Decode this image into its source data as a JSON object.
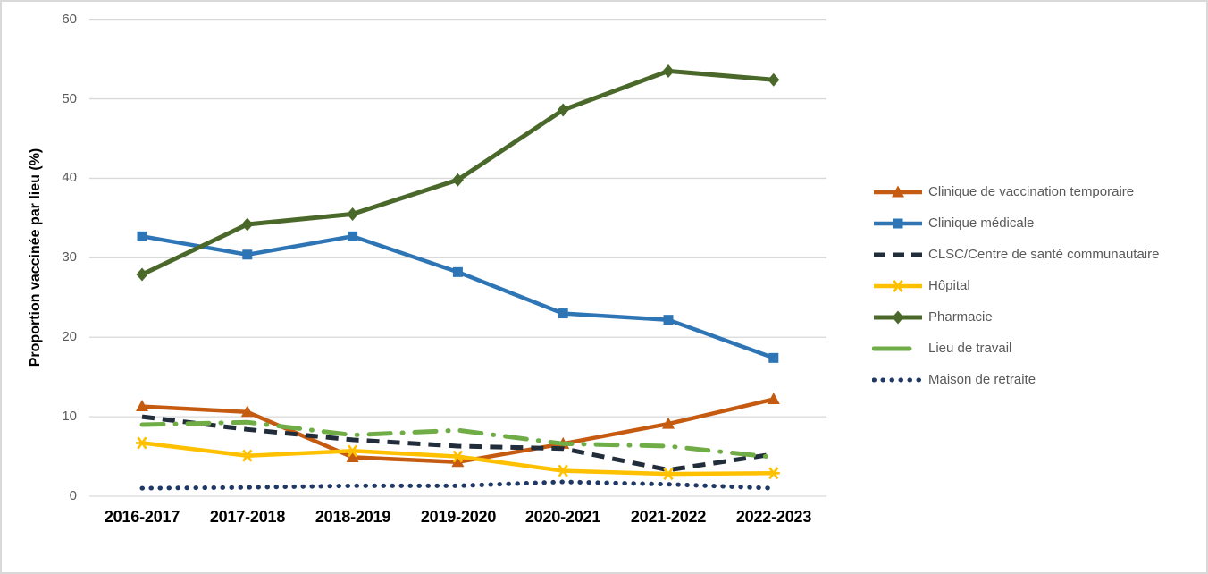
{
  "chart_data": {
    "type": "line",
    "title": "",
    "ylabel": "Proportion vaccinée par lieu (%)",
    "xlabel": "",
    "ylim": [
      0,
      60
    ],
    "yticks": [
      0,
      10,
      20,
      30,
      40,
      50,
      60
    ],
    "grid": "horizontal",
    "gridline_color": "#d9d9d9",
    "legend_position": "right",
    "categories": [
      "2016-2017",
      "2017-2018",
      "2018-2019",
      "2019-2020",
      "2020-2021",
      "2021-2022",
      "2022-2023"
    ],
    "series": [
      {
        "id": "clinique-vaccination-temporaire",
        "name": "Clinique de vaccination temporaire",
        "color": "#C55A11",
        "style": "solid",
        "width": 4.5,
        "marker": "triangle",
        "values": [
          11.3,
          10.6,
          4.9,
          4.3,
          6.6,
          9.1,
          12.2
        ]
      },
      {
        "id": "clinique-medicale",
        "name": "Clinique médicale",
        "color": "#2E75B6",
        "style": "solid",
        "width": 4.5,
        "marker": "square",
        "values": [
          32.7,
          30.4,
          32.7,
          28.2,
          23.0,
          22.2,
          17.4
        ]
      },
      {
        "id": "clsc-centre-sante-communautaire",
        "name": "CLSC/Centre de santé communautaire",
        "color": "#212D3B",
        "style": "dashed",
        "dash": "14 9",
        "legend_dash": "13 8",
        "width": 5,
        "marker": null,
        "values": [
          10.0,
          8.4,
          7.1,
          6.3,
          6.0,
          3.3,
          5.3
        ]
      },
      {
        "id": "hopital",
        "name": "Hôpital",
        "color": "#FFC000",
        "style": "solid",
        "width": 4.5,
        "marker": "star",
        "values": [
          6.7,
          5.1,
          5.7,
          5.0,
          3.2,
          2.8,
          2.9
        ]
      },
      {
        "id": "pharmacie",
        "name": "Pharmacie",
        "color": "#4A682A",
        "style": "solid",
        "width": 5,
        "marker": "diamond",
        "values": [
          27.9,
          34.2,
          35.5,
          39.8,
          48.6,
          53.5,
          52.4
        ]
      },
      {
        "id": "lieu-de-travail",
        "name": "Lieu de travail",
        "color": "#70AD47",
        "style": "dash-dot",
        "dash": "24 13 1 13",
        "legend_dash": "40 18",
        "linecap": "round",
        "width": 5,
        "marker": null,
        "values": [
          9.0,
          9.3,
          7.7,
          8.3,
          6.6,
          6.3,
          4.9
        ]
      },
      {
        "id": "maison-de-retraite",
        "name": "Maison de retraite",
        "color": "#1F3864",
        "style": "dotted",
        "dash": "0.5 9.5",
        "legend_dash": "0.5 9.5",
        "linecap": "round",
        "width": 5,
        "marker": null,
        "values": [
          1.0,
          1.1,
          1.3,
          1.3,
          1.8,
          1.5,
          1.0
        ]
      }
    ]
  }
}
